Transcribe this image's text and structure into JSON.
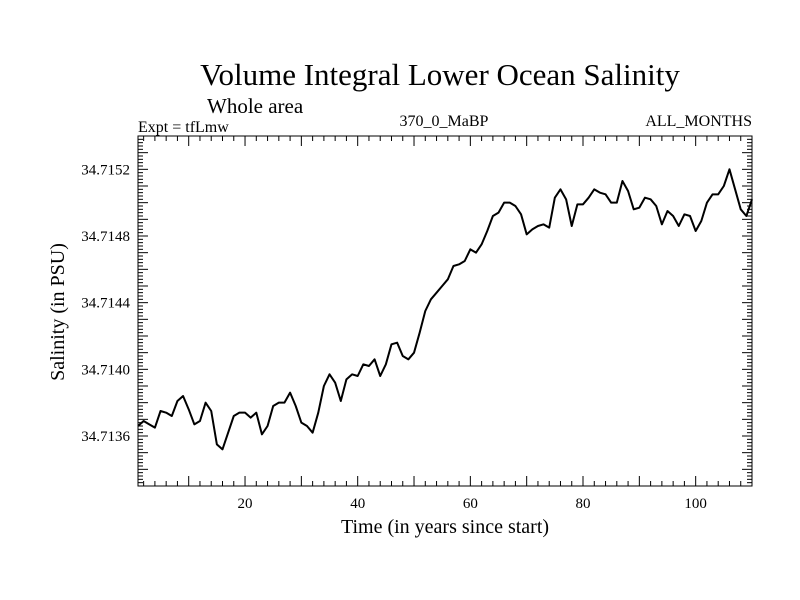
{
  "chart_data": {
    "type": "line",
    "title": "Volume Integral Lower Ocean Salinity",
    "subtitle": "Whole area",
    "header_left": "Expt = tfLmw",
    "header_center": "370_0_MaBP",
    "header_right": "ALL_MONTHS",
    "xlabel": "Time (in years since start)",
    "ylabel": "Salinity (in PSU)",
    "xlim": [
      1,
      110
    ],
    "ylim": [
      34.7133,
      34.7154
    ],
    "x_ticks": [
      20,
      40,
      60,
      80,
      100
    ],
    "y_ticks": [
      34.7136,
      34.714,
      34.7144,
      34.7148,
      34.7152
    ],
    "grid": false,
    "series": [
      {
        "name": "Salinity",
        "color": "#000000",
        "x": [
          1,
          2,
          3,
          4,
          5,
          6,
          7,
          8,
          9,
          10,
          11,
          12,
          13,
          14,
          15,
          16,
          17,
          18,
          19,
          20,
          21,
          22,
          23,
          24,
          25,
          26,
          27,
          28,
          29,
          30,
          31,
          32,
          33,
          34,
          35,
          36,
          37,
          38,
          39,
          40,
          41,
          42,
          43,
          44,
          45,
          46,
          47,
          48,
          49,
          50,
          51,
          52,
          53,
          54,
          55,
          56,
          57,
          58,
          59,
          60,
          61,
          62,
          63,
          64,
          65,
          66,
          67,
          68,
          69,
          70,
          71,
          72,
          73,
          74,
          75,
          76,
          77,
          78,
          79,
          80,
          81,
          82,
          83,
          84,
          85,
          86,
          87,
          88,
          89,
          90,
          91,
          92,
          93,
          94,
          95,
          96,
          97,
          98,
          99,
          100,
          101,
          102,
          103,
          104,
          105,
          106,
          107,
          108,
          109,
          110
        ],
        "values": [
          34.71366,
          34.71369,
          34.71367,
          34.71365,
          34.71375,
          34.71374,
          34.71372,
          34.71381,
          34.71384,
          34.71376,
          34.71367,
          34.71369,
          34.7138,
          34.71375,
          34.71355,
          34.71352,
          34.71362,
          34.71372,
          34.71374,
          34.71374,
          34.71371,
          34.71374,
          34.71361,
          34.71366,
          34.71378,
          34.7138,
          34.7138,
          34.71386,
          34.71378,
          34.71368,
          34.71366,
          34.71362,
          34.71374,
          34.7139,
          34.71397,
          34.71392,
          34.71381,
          34.71394,
          34.71397,
          34.71396,
          34.71403,
          34.71402,
          34.71406,
          34.71396,
          34.71403,
          34.71415,
          34.71416,
          34.71408,
          34.71406,
          34.7141,
          34.71422,
          34.71435,
          34.71442,
          34.71446,
          34.7145,
          34.71454,
          34.71462,
          34.71463,
          34.71465,
          34.71472,
          34.7147,
          34.71475,
          34.71483,
          34.71492,
          34.71494,
          34.715,
          34.715,
          34.71498,
          34.71493,
          34.71481,
          34.71484,
          34.71486,
          34.71487,
          34.71485,
          34.71503,
          34.71508,
          34.71502,
          34.71486,
          34.71499,
          34.71499,
          34.71503,
          34.71508,
          34.71506,
          34.71505,
          34.715,
          34.715,
          34.71513,
          34.71507,
          34.71496,
          34.71497,
          34.71503,
          34.71502,
          34.71498,
          34.71487,
          34.71495,
          34.71492,
          34.71486,
          34.71493,
          34.71492,
          34.71483,
          34.71489,
          34.715,
          34.71505,
          34.71505,
          34.7151,
          34.7152,
          34.71508,
          34.71496,
          34.71492,
          34.71502
        ]
      }
    ]
  }
}
